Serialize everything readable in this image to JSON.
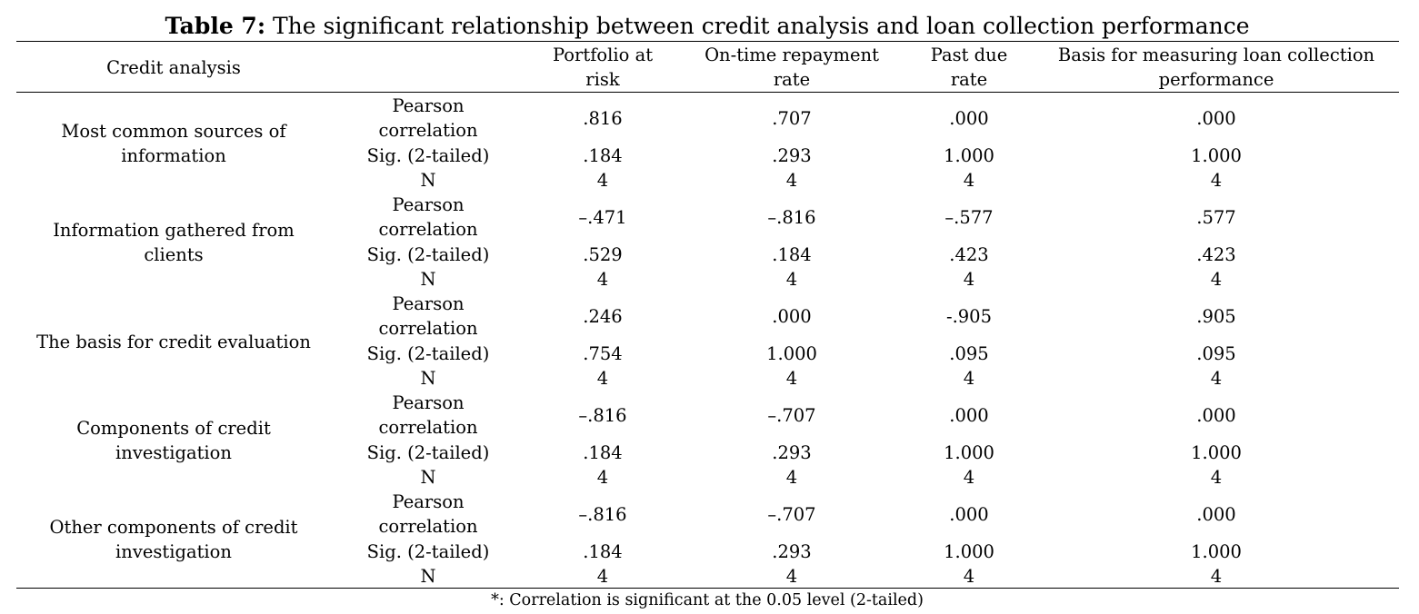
{
  "title": {
    "number": "Table 7:",
    "text": " The significant relationship between credit analysis and loan collection performance"
  },
  "header": {
    "credit_analysis": "Credit analysis",
    "portfolio": [
      "Portfolio at",
      "risk"
    ],
    "ontime": [
      "On-time repayment",
      "rate"
    ],
    "pastdue": [
      "Past due",
      "rate"
    ],
    "basis": [
      "Basis for measuring loan collection",
      "performance"
    ]
  },
  "stat_labels": {
    "pearson": [
      "Pearson",
      "correlation"
    ],
    "sig": "Sig. (2-tailed)",
    "n": "N"
  },
  "groups": [
    {
      "label": [
        "Most common sources of",
        "information"
      ],
      "pearson": [
        ".816",
        ".707",
        ".000",
        ".000"
      ],
      "sig": [
        ".184",
        ".293",
        "1.000",
        "1.000"
      ],
      "n": [
        "4",
        "4",
        "4",
        "4"
      ]
    },
    {
      "label": [
        "Information gathered from",
        "clients"
      ],
      "pearson": [
        "–.471",
        "–.816",
        "–.577",
        ".577"
      ],
      "sig": [
        ".529",
        ".184",
        ".423",
        ".423"
      ],
      "n": [
        "4",
        "4",
        "4",
        "4"
      ]
    },
    {
      "label": [
        "The basis for credit evaluation"
      ],
      "pearson": [
        ".246",
        ".000",
        "-.905",
        ".905"
      ],
      "sig": [
        ".754",
        "1.000",
        ".095",
        ".095"
      ],
      "n": [
        "4",
        "4",
        "4",
        "4"
      ]
    },
    {
      "label": [
        "Components of credit",
        "investigation"
      ],
      "pearson": [
        "–.816",
        "–.707",
        ".000",
        ".000"
      ],
      "sig": [
        ".184",
        ".293",
        "1.000",
        "1.000"
      ],
      "n": [
        "4",
        "4",
        "4",
        "4"
      ]
    },
    {
      "label": [
        "Other components of credit",
        "investigation"
      ],
      "pearson": [
        "–.816",
        "–.707",
        ".000",
        ".000"
      ],
      "sig": [
        ".184",
        ".293",
        "1.000",
        "1.000"
      ],
      "n": [
        "4",
        "4",
        "4",
        "4"
      ]
    }
  ],
  "footnote": "*: Correlation is significant at the 0.05 level (2-tailed)"
}
